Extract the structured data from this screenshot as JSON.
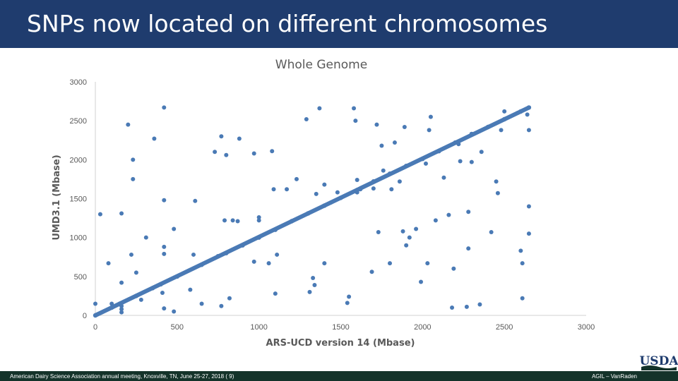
{
  "slide": {
    "title": "SNPs now located on different chromosomes",
    "footer_left": "American Dairy Science Association annual meeting, Knoxville, TN, June 25-27, 2018 (   9)",
    "footer_right": "AGIL – VanRaden",
    "logo_text": "USDA"
  },
  "colors": {
    "title_bar": "#1f3c6e",
    "footer_bar": "#14332a",
    "points": "#4a7ab5",
    "axis": "#d0d0d0",
    "text": "#595959"
  },
  "chart_data": {
    "type": "scatter",
    "title": "Whole Genome",
    "xlabel": "ARS-UCD version 14 (Mbase)",
    "ylabel": "UMD3.1 (Mbase)",
    "xlim": [
      0,
      3000
    ],
    "ylim": [
      0,
      3000
    ],
    "xticks": [
      0,
      500,
      1000,
      1500,
      2000,
      2500,
      3000
    ],
    "yticks": [
      0,
      500,
      1000,
      1500,
      2000,
      2500,
      3000
    ],
    "grid": false,
    "legend": "none",
    "diagonal_trend": {
      "x": [
        0,
        2650
      ],
      "y": [
        0,
        2670
      ]
    },
    "diagonal_points": [
      [
        0,
        0
      ],
      [
        100,
        100
      ],
      [
        150,
        150
      ],
      [
        250,
        250
      ],
      [
        350,
        350
      ],
      [
        400,
        400
      ],
      [
        500,
        500
      ],
      [
        650,
        650
      ],
      [
        750,
        760
      ],
      [
        800,
        800
      ],
      [
        900,
        900
      ],
      [
        1000,
        1000
      ],
      [
        1100,
        1100
      ],
      [
        1200,
        1210
      ],
      [
        1300,
        1310
      ],
      [
        1400,
        1410
      ],
      [
        1500,
        1510
      ],
      [
        1600,
        1610
      ],
      [
        1700,
        1720
      ],
      [
        1800,
        1820
      ],
      [
        1900,
        1920
      ],
      [
        2000,
        2010
      ],
      [
        2100,
        2110
      ],
      [
        2200,
        2220
      ],
      [
        2300,
        2330
      ],
      [
        2400,
        2420
      ],
      [
        2500,
        2520
      ],
      [
        2600,
        2620
      ],
      [
        2650,
        2670
      ]
    ],
    "outliers": [
      [
        0,
        150
      ],
      [
        30,
        1300
      ],
      [
        80,
        670
      ],
      [
        100,
        150
      ],
      [
        160,
        40
      ],
      [
        160,
        80
      ],
      [
        160,
        120
      ],
      [
        160,
        420
      ],
      [
        160,
        1310
      ],
      [
        200,
        2450
      ],
      [
        220,
        780
      ],
      [
        230,
        1750
      ],
      [
        230,
        2000
      ],
      [
        250,
        550
      ],
      [
        280,
        200
      ],
      [
        310,
        1000
      ],
      [
        360,
        2270
      ],
      [
        410,
        290
      ],
      [
        420,
        90
      ],
      [
        420,
        2670
      ],
      [
        420,
        1480
      ],
      [
        420,
        880
      ],
      [
        420,
        790
      ],
      [
        480,
        1110
      ],
      [
        480,
        50
      ],
      [
        580,
        330
      ],
      [
        600,
        780
      ],
      [
        610,
        1470
      ],
      [
        650,
        150
      ],
      [
        730,
        2100
      ],
      [
        770,
        2300
      ],
      [
        770,
        120
      ],
      [
        790,
        1220
      ],
      [
        800,
        2060
      ],
      [
        820,
        220
      ],
      [
        840,
        1220
      ],
      [
        870,
        1210
      ],
      [
        880,
        2270
      ],
      [
        970,
        2080
      ],
      [
        970,
        690
      ],
      [
        1000,
        1260
      ],
      [
        1000,
        1220
      ],
      [
        1060,
        670
      ],
      [
        1080,
        2110
      ],
      [
        1090,
        1620
      ],
      [
        1100,
        280
      ],
      [
        1110,
        780
      ],
      [
        1170,
        1620
      ],
      [
        1230,
        1750
      ],
      [
        1290,
        2520
      ],
      [
        1310,
        300
      ],
      [
        1330,
        480
      ],
      [
        1340,
        390
      ],
      [
        1350,
        1560
      ],
      [
        1370,
        2660
      ],
      [
        1400,
        670
      ],
      [
        1400,
        1680
      ],
      [
        1440,
        1450
      ],
      [
        1480,
        1580
      ],
      [
        1540,
        160
      ],
      [
        1550,
        240
      ],
      [
        1580,
        2660
      ],
      [
        1590,
        2500
      ],
      [
        1600,
        1740
      ],
      [
        1600,
        1580
      ],
      [
        1620,
        1620
      ],
      [
        1690,
        560
      ],
      [
        1700,
        1630
      ],
      [
        1720,
        2450
      ],
      [
        1730,
        1070
      ],
      [
        1750,
        2180
      ],
      [
        1760,
        1860
      ],
      [
        1800,
        670
      ],
      [
        1810,
        1620
      ],
      [
        1830,
        2220
      ],
      [
        1860,
        1720
      ],
      [
        1880,
        1080
      ],
      [
        1890,
        2420
      ],
      [
        1900,
        900
      ],
      [
        1920,
        1000
      ],
      [
        1960,
        1110
      ],
      [
        1990,
        430
      ],
      [
        2020,
        1950
      ],
      [
        2030,
        670
      ],
      [
        2040,
        2380
      ],
      [
        2050,
        2550
      ],
      [
        2080,
        1220
      ],
      [
        2130,
        1770
      ],
      [
        2160,
        1290
      ],
      [
        2180,
        100
      ],
      [
        2190,
        600
      ],
      [
        2220,
        2200
      ],
      [
        2230,
        1980
      ],
      [
        2270,
        110
      ],
      [
        2280,
        860
      ],
      [
        2280,
        1330
      ],
      [
        2300,
        1970
      ],
      [
        2350,
        140
      ],
      [
        2360,
        2100
      ],
      [
        2420,
        1070
      ],
      [
        2450,
        1720
      ],
      [
        2460,
        1570
      ],
      [
        2480,
        2380
      ],
      [
        2500,
        2620
      ],
      [
        2580,
        2600
      ],
      [
        2600,
        830
      ],
      [
        2610,
        670
      ],
      [
        2610,
        220
      ],
      [
        2640,
        2580
      ],
      [
        2650,
        2380
      ],
      [
        2650,
        1400
      ],
      [
        2650,
        1050
      ]
    ]
  }
}
